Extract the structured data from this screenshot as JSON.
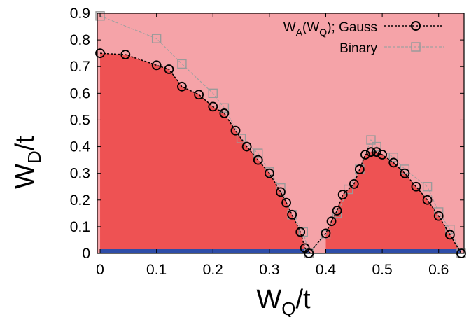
{
  "chart_data": {
    "type": "line",
    "xlabel": "W",
    "xlabel_sub": "Q",
    "xlabel_suffix": "/t",
    "ylabel": "W",
    "ylabel_sub": "D",
    "ylabel_suffix": "/t",
    "xlim": [
      -0.005,
      0.645
    ],
    "ylim": [
      0,
      0.9
    ],
    "xticks": [
      0,
      0.1,
      0.2,
      0.3,
      0.4,
      0.5,
      0.6
    ],
    "xtick_labels": [
      "0",
      "0.1",
      "0.2",
      "0.3",
      "0.4",
      "0.5",
      "0.6"
    ],
    "yticks": [
      0,
      0.1,
      0.2,
      0.3,
      0.4,
      0.5,
      0.6,
      0.7,
      0.8,
      0.9
    ],
    "ytick_labels": [
      "0",
      "0.1",
      "0.2",
      "0.3",
      "0.4",
      "0.5",
      "0.6",
      "0.7",
      "0.8",
      "0.9"
    ],
    "legend_position": "top-right",
    "legend": [
      {
        "pre": "W",
        "sub1": "A",
        "mid": "(W",
        "sub2": "Q",
        "post": "); Gauss"
      },
      {
        "pre": "Binary",
        "sub1": "",
        "mid": "",
        "sub2": "",
        "post": ""
      }
    ],
    "colors": {
      "background_region": "#f5a3a8",
      "filled_region": "#ee5253",
      "baseline": "#2e4da8",
      "gauss_line": "#000000",
      "binary_line": "#a0a0a0"
    },
    "series": [
      {
        "name": "W_A(W_Q); Gauss",
        "marker": "circle",
        "x": [
          0,
          0.045,
          0.1,
          0.122,
          0.145,
          0.175,
          0.2,
          0.22,
          0.24,
          0.26,
          0.28,
          0.3,
          0.32,
          0.33,
          0.34,
          0.355,
          0.363,
          0.37,
          0.4,
          0.41,
          0.42,
          0.43,
          0.45,
          0.46,
          0.47,
          0.48,
          0.49,
          0.5,
          0.52,
          0.54,
          0.56,
          0.58,
          0.6,
          0.62,
          0.64
        ],
        "y": [
          0.75,
          0.745,
          0.705,
          0.69,
          0.625,
          0.595,
          0.55,
          0.525,
          0.46,
          0.4,
          0.35,
          0.3,
          0.23,
          0.19,
          0.145,
          0.08,
          0.02,
          0.0,
          0.075,
          0.12,
          0.16,
          0.22,
          0.26,
          0.315,
          0.37,
          0.38,
          0.38,
          0.37,
          0.34,
          0.3,
          0.25,
          0.2,
          0.14,
          0.07,
          0.0
        ],
        "fill_regions": [
          [
            0,
            17
          ],
          [
            18,
            34
          ]
        ]
      },
      {
        "name": "Binary",
        "marker": "square",
        "x": [
          0,
          0.1,
          0.145,
          0.2,
          0.22,
          0.25,
          0.28,
          0.3,
          0.32,
          0.34,
          0.36,
          0.37,
          0.4,
          0.42,
          0.44,
          0.46,
          0.48,
          0.49,
          0.52,
          0.54,
          0.58,
          0.6,
          0.62,
          0.64
        ],
        "y": [
          0.89,
          0.805,
          0.71,
          0.6,
          0.545,
          0.43,
          0.375,
          0.305,
          0.245,
          0.145,
          0.08,
          0.0,
          0.07,
          0.15,
          0.24,
          0.315,
          0.425,
          0.4,
          0.36,
          0.315,
          0.25,
          0.155,
          0.09,
          0.0
        ]
      }
    ],
    "baseline_segments": [
      [
        0,
        0.37
      ],
      [
        0.4,
        0.64
      ]
    ]
  }
}
